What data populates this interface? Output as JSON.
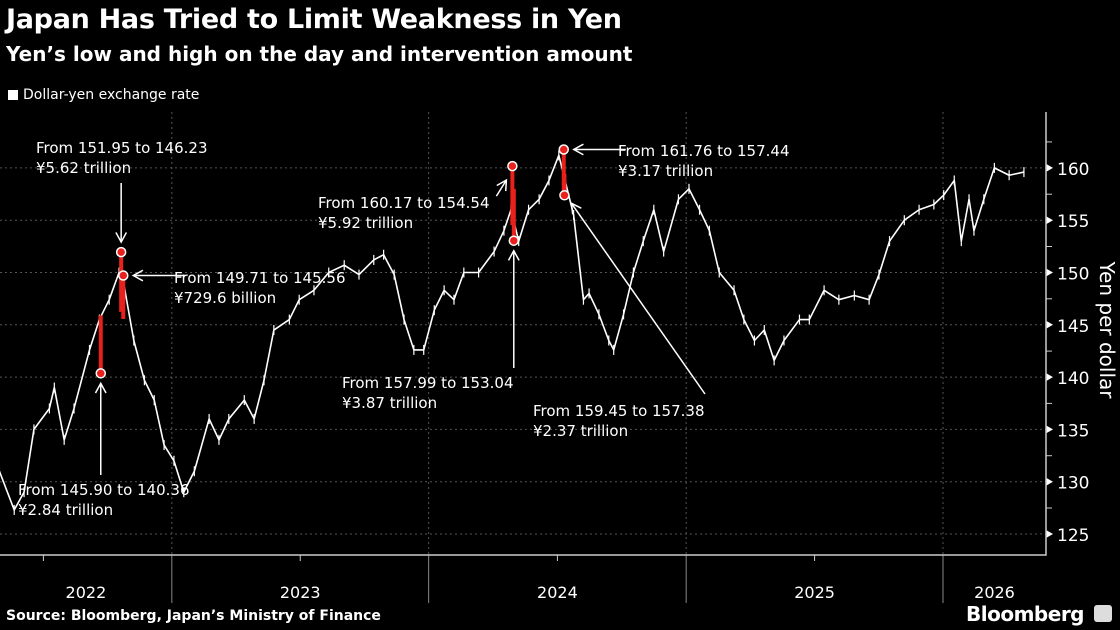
{
  "title": "Japan Has Tried to Limit Weakness in Yen",
  "subtitle": "Yen’s low and high on the day and intervention amount",
  "legend": {
    "label": "Dollar-yen exchange rate",
    "color": "#ffffff"
  },
  "source": "Source: Bloomberg, Japan’s Ministry of Finance",
  "logo": "Bloomberg",
  "chart_data": {
    "type": "line",
    "title": "Japan Has Tried to Limit Weakness in Yen",
    "subtitle": "Yen’s low and high on the day and intervention amount",
    "ylabel": "Yen per dollar",
    "xlabel": "",
    "ylim": [
      122.5,
      165
    ],
    "yticks": [
      "125",
      "130",
      "135",
      "140",
      "145",
      "150",
      "155",
      "160"
    ],
    "xticks": [
      "2022",
      "2023",
      "2024",
      "2025",
      "2026"
    ],
    "grid": true,
    "legend_position": "top-left",
    "series_color": "#ffffff",
    "intervention_color": "#e8211c",
    "series": [
      {
        "name": "Dollar-yen exchange rate",
        "x": [
          "2022-05-01",
          "2022-05-22",
          "2022-06-05",
          "2022-06-19",
          "2022-07-11",
          "2022-07-18",
          "2022-08-01",
          "2022-08-15",
          "2022-09-06",
          "2022-09-20",
          "2022-10-04",
          "2022-10-18",
          "2022-10-25",
          "2022-11-08",
          "2022-11-23",
          "2022-12-07",
          "2022-12-21",
          "2023-01-04",
          "2023-01-18",
          "2023-02-02",
          "2023-02-23",
          "2023-03-09",
          "2023-03-23",
          "2023-04-14",
          "2023-04-28",
          "2023-05-12",
          "2023-05-26",
          "2023-06-17",
          "2023-07-01",
          "2023-07-22",
          "2023-08-12",
          "2023-09-03",
          "2023-09-24",
          "2023-10-15",
          "2023-10-29",
          "2023-11-13",
          "2023-11-27",
          "2023-12-11",
          "2023-12-25",
          "2024-01-09",
          "2024-01-23",
          "2024-02-06",
          "2024-02-20",
          "2024-03-12",
          "2024-04-03",
          "2024-04-17",
          "2024-04-27",
          "2024-05-08",
          "2024-05-22",
          "2024-06-06",
          "2024-06-20",
          "2024-07-04",
          "2024-07-11",
          "2024-07-25",
          "2024-08-08",
          "2024-08-16",
          "2024-08-30",
          "2024-09-13",
          "2024-09-20",
          "2024-10-04",
          "2024-10-18",
          "2024-11-01",
          "2024-11-16",
          "2024-11-30",
          "2024-12-21",
          "2025-01-05",
          "2025-01-20",
          "2025-02-03",
          "2025-02-17",
          "2025-03-10",
          "2025-03-24",
          "2025-04-08",
          "2025-04-22",
          "2025-05-06",
          "2025-05-20",
          "2025-06-11",
          "2025-06-25",
          "2025-07-16",
          "2025-08-06",
          "2025-08-28",
          "2025-09-18",
          "2025-10-02",
          "2025-10-17",
          "2025-11-07",
          "2025-11-28",
          "2025-12-19",
          "2026-01-02",
          "2026-01-17",
          "2026-01-27",
          "2026-02-07",
          "2026-02-14",
          "2026-02-28",
          "2026-03-15",
          "2026-04-05",
          "2026-04-26"
        ],
        "y": [
          131,
          127.3,
          129,
          135,
          137,
          139,
          134,
          137,
          142.6,
          145.5,
          147.4,
          150,
          148.8,
          143.5,
          139.7,
          137.8,
          133.5,
          132,
          129,
          131,
          136,
          134,
          136,
          137.8,
          136,
          139.7,
          144.5,
          145.5,
          147.4,
          148.3,
          150,
          150.7,
          149.8,
          151.2,
          151.7,
          149.8,
          145.5,
          142.6,
          142.6,
          146.4,
          148.3,
          147.4,
          150,
          150,
          152,
          154,
          156,
          153,
          156,
          157,
          158.8,
          161.2,
          159.3,
          155.5,
          147.4,
          148,
          146,
          143.5,
          142.6,
          146,
          150,
          153,
          156,
          152,
          157,
          158,
          156,
          154,
          150,
          148.3,
          145.5,
          143.5,
          144.5,
          141.6,
          143.5,
          145.5,
          145.5,
          148.3,
          147.4,
          147.8,
          147.4,
          149.8,
          153,
          155,
          156,
          156.5,
          157.4,
          158.8,
          153,
          157,
          154,
          157,
          160,
          159.3,
          159.6
        ]
      }
    ],
    "interventions": [
      {
        "date": "2022-09-22",
        "from": 145.9,
        "to": 140.36,
        "marker": "low",
        "label_line1": "From 145.90 to 140.36",
        "label_line2": "¥2.84 trillion"
      },
      {
        "date": "2022-10-21",
        "from": 151.95,
        "to": 146.23,
        "marker": "high",
        "label_line1": "From 151.95 to 146.23",
        "label_line2": "¥5.62 trillion"
      },
      {
        "date": "2022-10-24",
        "from": 149.71,
        "to": 145.56,
        "marker": "high",
        "label_line1": "From 149.71 to 145.56",
        "label_line2": "¥729.6 billion"
      },
      {
        "date": "2024-04-29",
        "from": 160.17,
        "to": 154.54,
        "marker": "high",
        "label_line1": "From 160.17 to 154.54",
        "label_line2": "¥5.92 trillion"
      },
      {
        "date": "2024-05-01",
        "from": 157.99,
        "to": 153.04,
        "marker": "low",
        "label_line1": "From 157.99 to 153.04",
        "label_line2": "¥3.87 trillion"
      },
      {
        "date": "2024-07-11",
        "from": 161.76,
        "to": 157.44,
        "marker": "high",
        "label_line1": "From 161.76 to 157.44",
        "label_line2": "¥3.17 trillion"
      },
      {
        "date": "2024-07-12",
        "from": 159.45,
        "to": 157.38,
        "marker": "low",
        "label_line1": "From 159.45 to 157.38",
        "label_line2": "¥2.37 trillion"
      }
    ]
  }
}
